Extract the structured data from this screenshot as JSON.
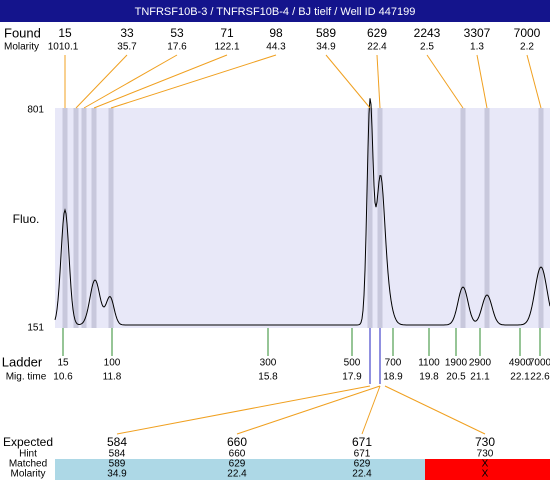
{
  "header": {
    "title": "TNFRSF10B-3 / TNFRSF10B-4 / BJ tielf / Well ID 447199"
  },
  "found": {
    "label": "Found",
    "molarity_label": "Molarity",
    "peaks": [
      {
        "size": "15",
        "molarity": "1010.1"
      },
      {
        "size": "33",
        "molarity": "35.7"
      },
      {
        "size": "53",
        "molarity": "17.6"
      },
      {
        "size": "71",
        "molarity": "122.1"
      },
      {
        "size": "98",
        "molarity": "44.3"
      },
      {
        "size": "589",
        "molarity": "34.9"
      },
      {
        "size": "629",
        "molarity": "22.4"
      },
      {
        "size": "2243",
        "molarity": "2.5"
      },
      {
        "size": "3307",
        "molarity": "1.3"
      },
      {
        "size": "7000",
        "molarity": "2.2"
      }
    ]
  },
  "plot": {
    "y_axis_label": "Fluo.",
    "y_top": "801",
    "y_bottom": "151"
  },
  "ladder": {
    "label": "Ladder",
    "time_label": "Mig. time",
    "items": [
      {
        "size": "15",
        "time": "10.6"
      },
      {
        "size": "100",
        "time": "11.8"
      },
      {
        "size": "300",
        "time": "15.8"
      },
      {
        "size": "500",
        "time": "17.9"
      },
      {
        "size": "700",
        "time": "18.9"
      },
      {
        "size": "1100",
        "time": "19.8"
      },
      {
        "size": "1900",
        "time": "20.5"
      },
      {
        "size": "2900",
        "time": "21.1"
      },
      {
        "size": "4900",
        "time": "22.1"
      },
      {
        "size": "7000",
        "time": "22.6"
      }
    ]
  },
  "table": {
    "row_labels": [
      "Expected",
      "Hint",
      "Matched",
      "Molarity"
    ],
    "columns": [
      {
        "expected": "584",
        "hint": "584",
        "matched": "589",
        "molarity": "34.9"
      },
      {
        "expected": "660",
        "hint": "660",
        "matched": "629",
        "molarity": "22.4"
      },
      {
        "expected": "671",
        "hint": "671",
        "matched": "629",
        "molarity": "22.4"
      },
      {
        "expected": "730",
        "hint": "730",
        "matched": "X",
        "molarity": "X"
      }
    ]
  }
}
